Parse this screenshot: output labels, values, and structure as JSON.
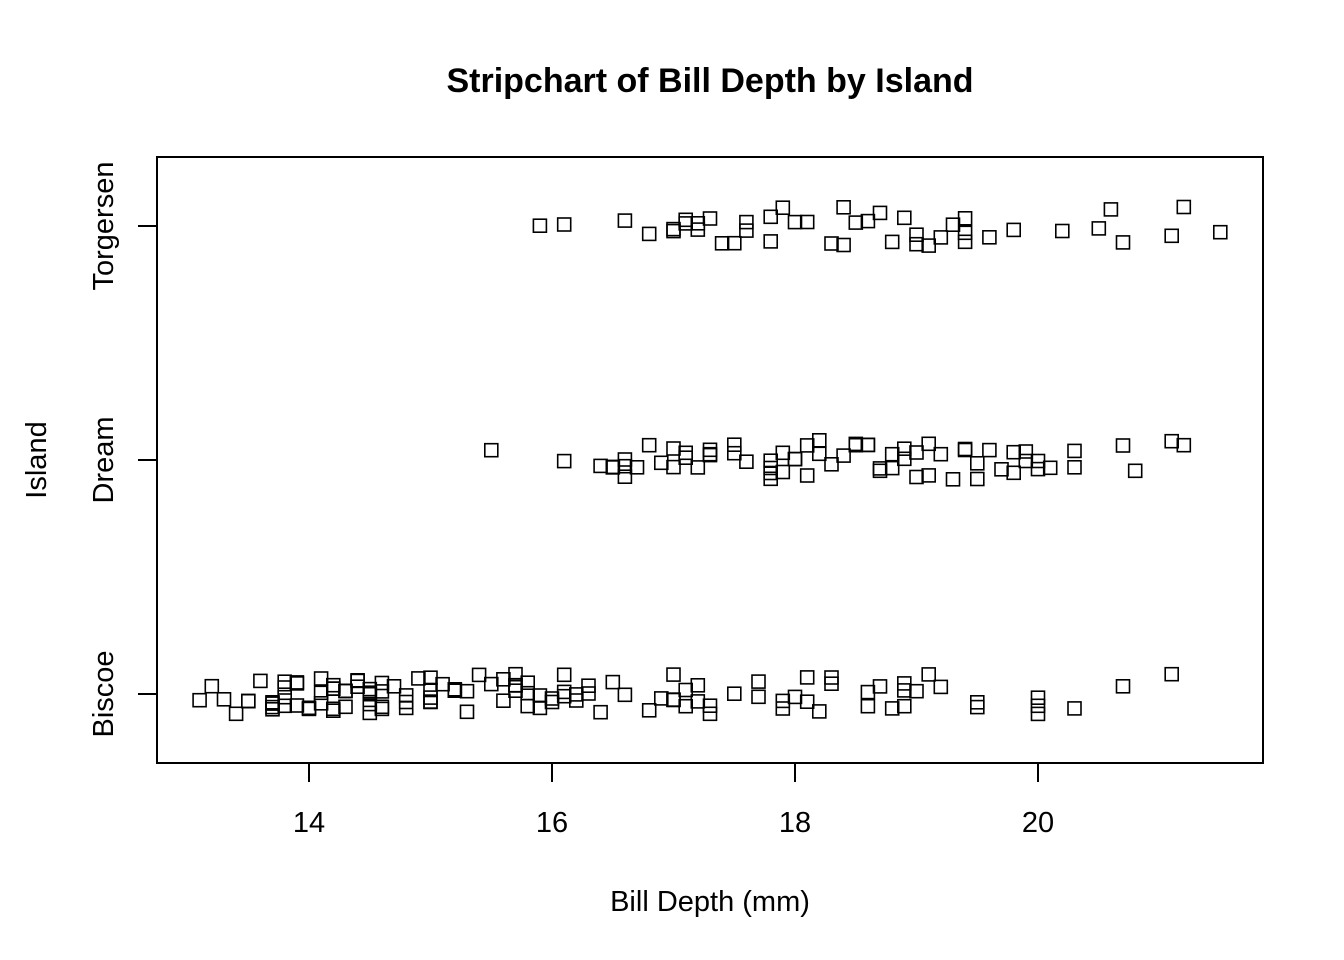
{
  "chart_data": {
    "type": "scatter",
    "subtype": "stripchart",
    "title": "Stripchart of Bill Depth by Island",
    "xlabel": "Bill Depth (mm)",
    "ylabel": "Island",
    "xlim": [
      12.9,
      21.8
    ],
    "x_ticks": [
      14,
      16,
      18,
      20
    ],
    "x_tick_labels": [
      "14",
      "16",
      "18",
      "20"
    ],
    "categories": [
      "Biscoe",
      "Dream",
      "Torgersen"
    ],
    "marker": "open-square",
    "jitter": true,
    "grid": false,
    "legend": "none",
    "series": [
      {
        "category": "Biscoe",
        "values": [
          13.1,
          13.2,
          13.3,
          13.4,
          13.5,
          13.5,
          13.6,
          13.7,
          13.7,
          13.7,
          13.7,
          13.8,
          13.8,
          13.8,
          13.8,
          13.9,
          13.9,
          13.9,
          14.0,
          14.0,
          14.1,
          14.1,
          14.1,
          14.2,
          14.2,
          14.2,
          14.2,
          14.2,
          14.3,
          14.3,
          14.3,
          14.4,
          14.4,
          14.4,
          14.5,
          14.5,
          14.5,
          14.5,
          14.5,
          14.6,
          14.6,
          14.6,
          14.6,
          14.7,
          14.8,
          14.8,
          14.8,
          14.9,
          15.0,
          15.0,
          15.0,
          15.0,
          15.0,
          15.1,
          15.2,
          15.2,
          15.2,
          15.3,
          15.3,
          15.4,
          15.5,
          15.6,
          15.6,
          15.7,
          15.7,
          15.7,
          15.7,
          15.8,
          15.8,
          15.8,
          15.9,
          15.9,
          16.0,
          16.0,
          16.1,
          16.1,
          16.1,
          16.2,
          16.2,
          16.3,
          16.3,
          16.4,
          16.5,
          16.6,
          16.8,
          16.9,
          17.0,
          17.0,
          17.0,
          17.1,
          17.1,
          17.2,
          17.2,
          17.3,
          17.3,
          17.5,
          17.7,
          17.7,
          17.9,
          17.9,
          18.0,
          18.1,
          18.1,
          18.2,
          18.3,
          18.3,
          18.6,
          18.6,
          18.7,
          18.8,
          18.9,
          18.9,
          18.9,
          19.0,
          19.1,
          19.2,
          19.5,
          19.5,
          20.0,
          20.0,
          20.0,
          20.3,
          20.7,
          21.1
        ]
      },
      {
        "category": "Dream",
        "values": [
          15.5,
          16.1,
          16.4,
          16.5,
          16.5,
          16.6,
          16.6,
          16.6,
          16.7,
          16.8,
          16.9,
          17.0,
          17.0,
          17.1,
          17.1,
          17.2,
          17.3,
          17.3,
          17.3,
          17.5,
          17.5,
          17.6,
          17.8,
          17.8,
          17.8,
          17.8,
          17.9,
          17.9,
          18.0,
          18.0,
          18.1,
          18.1,
          18.2,
          18.2,
          18.3,
          18.4,
          18.5,
          18.5,
          18.6,
          18.6,
          18.7,
          18.7,
          18.8,
          18.8,
          18.9,
          18.9,
          19.0,
          19.0,
          19.1,
          19.1,
          19.2,
          19.3,
          19.4,
          19.4,
          19.5,
          19.5,
          19.6,
          19.7,
          19.8,
          19.8,
          19.9,
          19.9,
          20.0,
          20.0,
          20.1,
          20.3,
          20.3,
          20.7,
          20.8,
          21.1,
          21.2
        ]
      },
      {
        "category": "Torgersen",
        "values": [
          15.9,
          16.1,
          16.6,
          16.8,
          17.0,
          17.0,
          17.1,
          17.1,
          17.2,
          17.2,
          17.3,
          17.4,
          17.5,
          17.6,
          17.6,
          17.8,
          17.8,
          17.9,
          18.0,
          18.1,
          18.3,
          18.4,
          18.4,
          18.5,
          18.6,
          18.7,
          18.8,
          18.9,
          19.0,
          19.0,
          19.1,
          19.2,
          19.3,
          19.4,
          19.4,
          19.4,
          19.6,
          19.8,
          20.2,
          20.5,
          20.6,
          20.7,
          21.1,
          21.2,
          21.5
        ]
      }
    ]
  }
}
